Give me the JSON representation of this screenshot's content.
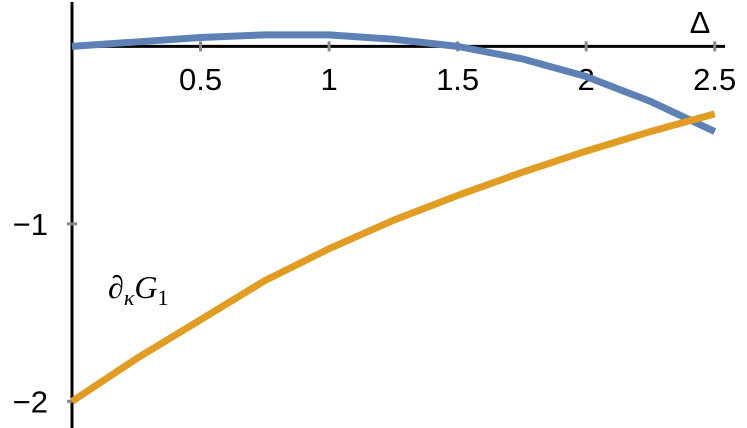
{
  "chart_data": {
    "type": "line",
    "x_label": "Δ",
    "annotation": [
      "∂",
      "κ",
      "G",
      "1"
    ],
    "x": [
      0,
      0.25,
      0.5,
      0.75,
      1,
      1.25,
      1.5,
      1.75,
      2,
      2.25,
      2.5
    ],
    "series": [
      {
        "color": "#5e81b5",
        "values": [
          0,
          0.025,
          0.05,
          0.065,
          0.065,
          0.04,
          0,
          -0.07,
          -0.17,
          -0.31,
          -0.48
        ]
      },
      {
        "color": "#e19c24",
        "values": [
          -2,
          -1.76,
          -1.54,
          -1.32,
          -1.14,
          -0.98,
          -0.84,
          -0.71,
          -0.59,
          -0.48,
          -0.38
        ]
      }
    ],
    "xlim": [
      0,
      2.54
    ],
    "ylim": [
      -2.15,
      0.25
    ],
    "xticks": [
      0.5,
      1,
      1.5,
      2,
      2.5
    ],
    "yticks": [
      {
        "value": -1,
        "label": "−1"
      },
      {
        "value": -2,
        "label": "−2"
      }
    ]
  }
}
